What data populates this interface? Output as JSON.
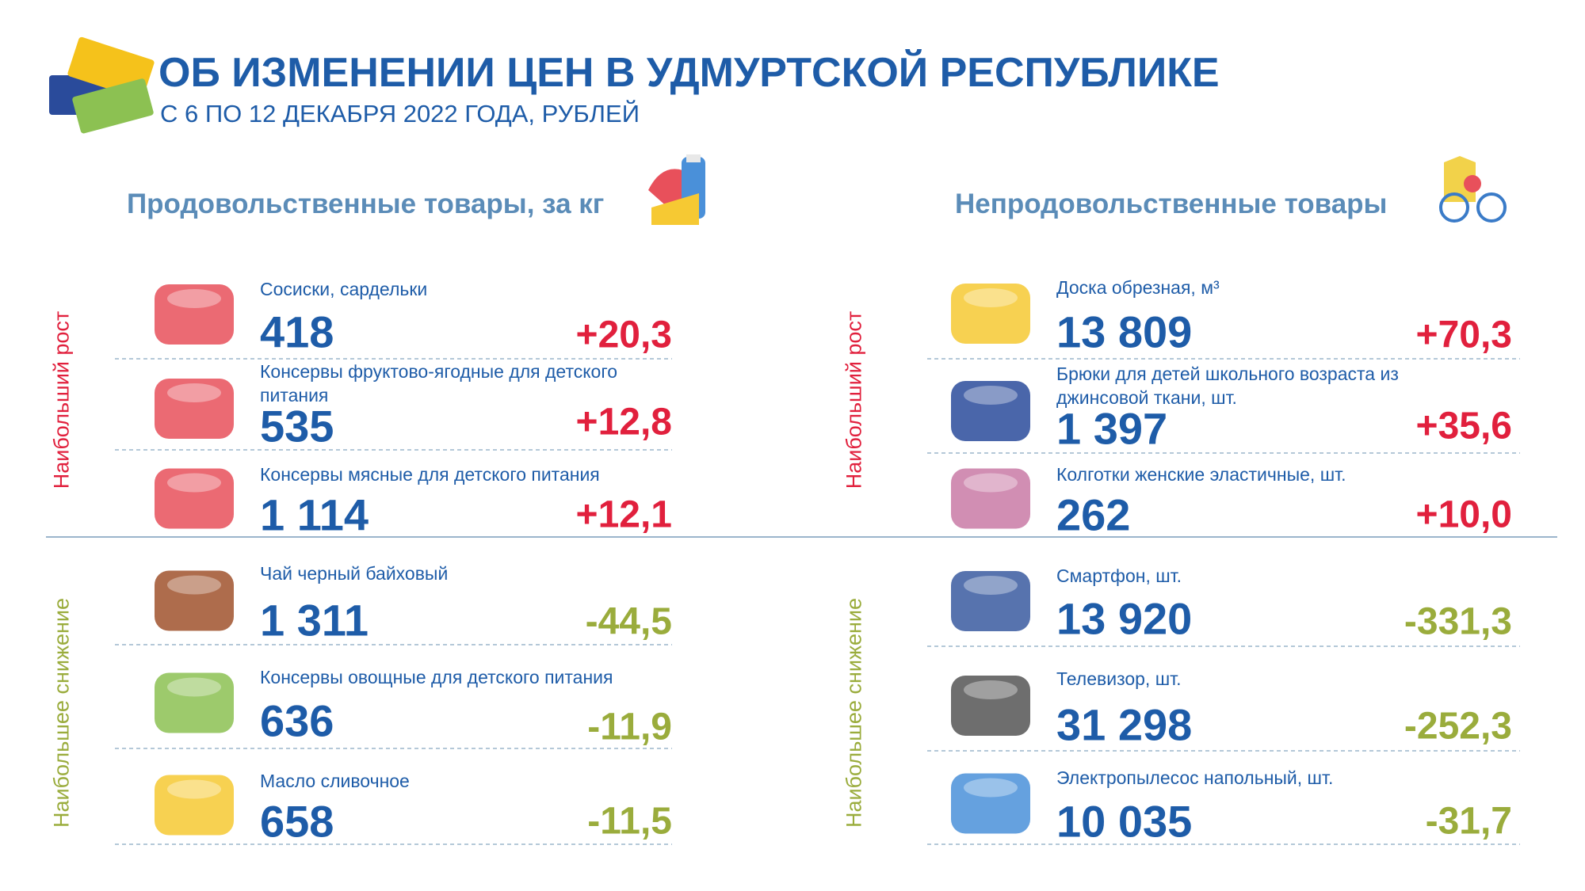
{
  "header": {
    "title": "ОБ ИЗМЕНЕНИИ ЦЕН В УДМУРТСКОЙ РЕСПУБЛИКЕ",
    "subtitle": "С 6 ПО 12 ДЕКАБРЯ 2022 ГОДА, РУБЛЕЙ"
  },
  "sections": [
    {
      "title": "Продовольственные товары, за кг",
      "groups": [
        {
          "label": "Наибольший рост",
          "items": [
            {
              "name": "Сосиски, сардельки",
              "price": "418",
              "change": "+20,3"
            },
            {
              "name": "Консервы фруктово-ягодные для детского питания",
              "price": "535",
              "change": "+12,8"
            },
            {
              "name": "Консервы мясные для детского питания",
              "price": "1 114",
              "change": "+12,1"
            }
          ]
        },
        {
          "label": "Наибольшее снижение",
          "items": [
            {
              "name": "Чай черный байховый",
              "price": "1 311",
              "change": "-44,5"
            },
            {
              "name": "Консервы овощные для детского питания",
              "price": "636",
              "change": "-11,9"
            },
            {
              "name": "Масло сливочное",
              "price": "658",
              "change": "-11,5"
            }
          ]
        }
      ]
    },
    {
      "title": "Непродовольственные товары",
      "groups": [
        {
          "label": "Наибольший рост",
          "items": [
            {
              "name": "Доска обрезная, м³",
              "price": "13 809",
              "change": "+70,3"
            },
            {
              "name": "Брюки для детей школьного возраста из джинсовой ткани, шт.",
              "price": "1 397",
              "change": "+35,6"
            },
            {
              "name": "Колготки женские эластичные, шт.",
              "price": "262",
              "change": "+10,0"
            }
          ]
        },
        {
          "label": "Наибольшее снижение",
          "items": [
            {
              "name": "Смартфон, шт.",
              "price": "13 920",
              "change": "-331,3"
            },
            {
              "name": "Телевизор, шт.",
              "price": "31 298",
              "change": "-252,3"
            },
            {
              "name": "Электропылесос напольный, шт.",
              "price": "10 035",
              "change": "-31,7"
            }
          ]
        }
      ]
    }
  ]
}
